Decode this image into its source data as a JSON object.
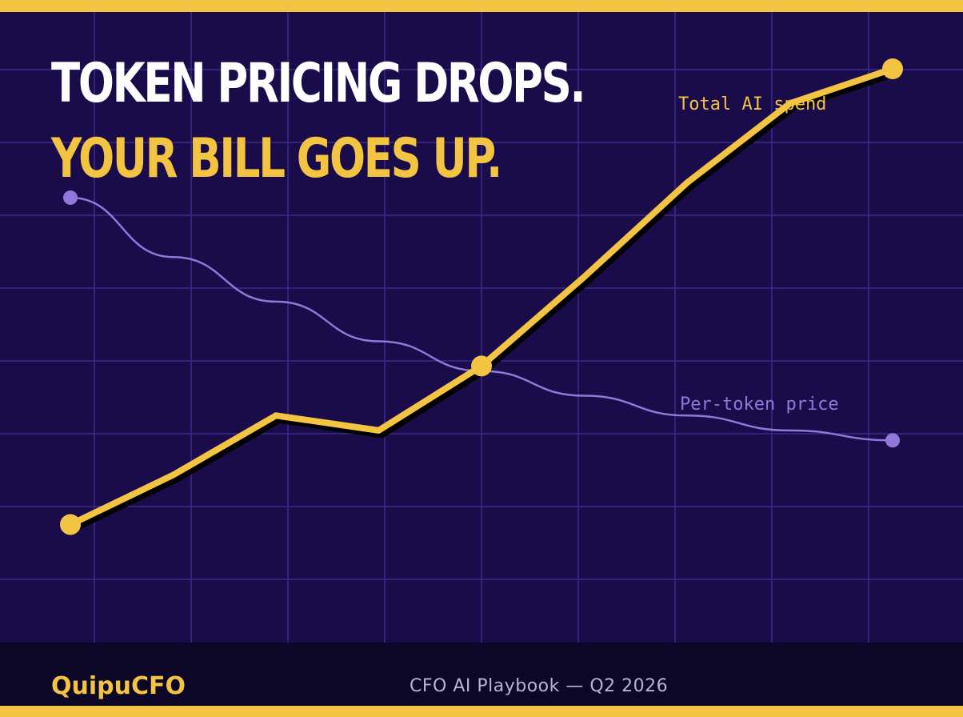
{
  "headline": {
    "line1": "TOKEN PRICING DROPS.",
    "line2": "YOUR BILL GOES UP."
  },
  "footer": {
    "brand": "QuipuCFO",
    "edition": "CFO AI Playbook — Q2 2026"
  },
  "colors": {
    "background": "#1a0c4a",
    "accent": "#f3c442",
    "secondary_series": "#8f78d8",
    "grid": "#3a2a8a",
    "footer_bg": "#0c0627"
  },
  "chart_data": {
    "type": "line",
    "title": "",
    "xlabel": "",
    "ylabel": "",
    "grid": true,
    "x": [
      0,
      1,
      2,
      3,
      4,
      5,
      6,
      7,
      8,
      9
    ],
    "xlim": [
      0,
      9
    ],
    "ylim": [
      0,
      100
    ],
    "series": [
      {
        "name": "Total AI spend",
        "color": "#f3c442",
        "values": [
          8,
          18,
          30,
          27,
          40,
          58,
          77,
          93,
          100,
          null
        ],
        "markers_at": [
          0,
          4,
          8
        ]
      },
      {
        "name": "Per-token price",
        "color": "#8f78d8",
        "values": [
          74,
          62,
          53,
          45,
          39,
          34,
          30,
          27,
          25,
          null
        ],
        "markers_at": [
          0,
          8
        ]
      }
    ]
  }
}
